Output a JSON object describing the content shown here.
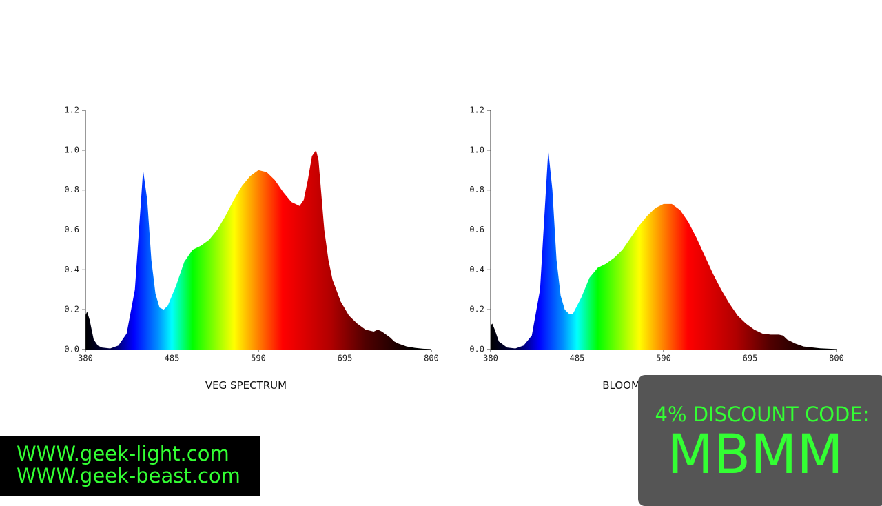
{
  "chart_data": [
    {
      "type": "area",
      "xlabel": "VEG SPECTRUM",
      "x": [
        380,
        382,
        385,
        390,
        395,
        400,
        410,
        420,
        430,
        440,
        445,
        450,
        455,
        460,
        465,
        470,
        475,
        480,
        490,
        500,
        510,
        520,
        530,
        540,
        550,
        560,
        570,
        580,
        590,
        600,
        610,
        620,
        630,
        640,
        645,
        650,
        655,
        660,
        663,
        666,
        670,
        675,
        680,
        690,
        700,
        710,
        720,
        730,
        735,
        740,
        750,
        755,
        760,
        770,
        780,
        790,
        800
      ],
      "values": [
        0.17,
        0.19,
        0.15,
        0.05,
        0.02,
        0.01,
        0.005,
        0.02,
        0.08,
        0.3,
        0.6,
        0.9,
        0.75,
        0.45,
        0.28,
        0.21,
        0.2,
        0.22,
        0.32,
        0.44,
        0.5,
        0.52,
        0.55,
        0.6,
        0.67,
        0.75,
        0.82,
        0.87,
        0.9,
        0.89,
        0.85,
        0.79,
        0.74,
        0.72,
        0.75,
        0.85,
        0.97,
        1.0,
        0.95,
        0.8,
        0.6,
        0.45,
        0.35,
        0.24,
        0.17,
        0.13,
        0.1,
        0.09,
        0.1,
        0.09,
        0.06,
        0.04,
        0.03,
        0.015,
        0.008,
        0.004,
        0.002
      ],
      "xlim": [
        380,
        800
      ],
      "xticks": [
        380,
        485,
        590,
        695,
        800
      ],
      "ylim": [
        0,
        1.2
      ],
      "yticks": [
        {
          "value": 0,
          "label": "0.0"
        },
        0.2,
        0.4,
        0.6,
        0.8,
        {
          "value": 1,
          "label": "1.0"
        },
        1.2
      ]
    },
    {
      "type": "area",
      "xlabel": "BLOOM SPECTRUM",
      "x": [
        380,
        382,
        385,
        390,
        400,
        410,
        420,
        430,
        440,
        445,
        450,
        455,
        460,
        465,
        470,
        475,
        480,
        490,
        500,
        510,
        520,
        530,
        540,
        550,
        560,
        570,
        580,
        590,
        600,
        610,
        620,
        630,
        640,
        650,
        660,
        670,
        680,
        690,
        700,
        710,
        720,
        730,
        735,
        740,
        750,
        760,
        780,
        800
      ],
      "values": [
        0.12,
        0.13,
        0.1,
        0.04,
        0.01,
        0.005,
        0.02,
        0.07,
        0.3,
        0.65,
        1.0,
        0.8,
        0.45,
        0.27,
        0.2,
        0.18,
        0.18,
        0.26,
        0.36,
        0.41,
        0.43,
        0.46,
        0.5,
        0.56,
        0.62,
        0.67,
        0.71,
        0.73,
        0.73,
        0.7,
        0.64,
        0.56,
        0.47,
        0.38,
        0.3,
        0.23,
        0.17,
        0.13,
        0.1,
        0.08,
        0.075,
        0.075,
        0.07,
        0.05,
        0.03,
        0.015,
        0.006,
        0.002
      ],
      "xlim": [
        380,
        800
      ],
      "xticks": [
        380,
        485,
        590,
        695,
        800
      ],
      "ylim": [
        0,
        1.2
      ],
      "yticks": [
        {
          "value": 0,
          "label": "0.0"
        },
        0.2,
        0.4,
        0.6,
        0.8,
        {
          "value": 1,
          "label": "1.0"
        },
        1.2
      ]
    }
  ],
  "overlays": {
    "websites": [
      "WWW.geek-light.com",
      "WWW.geek-beast.com"
    ],
    "discount_label": "4% DISCOUNT CODE:",
    "discount_code": "MBMM"
  }
}
